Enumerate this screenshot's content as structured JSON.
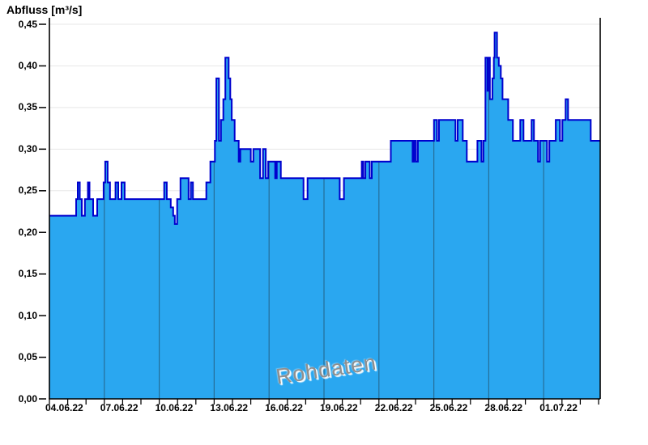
{
  "title": "Abfluss [m³/s]",
  "watermark": "Rohdaten",
  "chart_data": {
    "type": "area",
    "title": "Abfluss [m³/s]",
    "subtitle": "Rohdaten",
    "grid": true,
    "legend": false,
    "x_axis": {
      "start_label": "04.06.22",
      "end_of_range": "04.07.22",
      "span_days": 30,
      "minor_tick_interval_days": 1,
      "major_tick_interval_days": 3,
      "ticks": [
        {
          "day": 0,
          "label": "04.06.22"
        },
        {
          "day": 3,
          "label": "07.06.22"
        },
        {
          "day": 6,
          "label": "10.06.22"
        },
        {
          "day": 9,
          "label": "13.06.22"
        },
        {
          "day": 12,
          "label": "16.06.22"
        },
        {
          "day": 15,
          "label": "19.06.22"
        },
        {
          "day": 18,
          "label": "22.06.22"
        },
        {
          "day": 21,
          "label": "25.06.22"
        },
        {
          "day": 24,
          "label": "28.06.22"
        },
        {
          "day": 27,
          "label": "01.07.22"
        }
      ],
      "gridline_days": [
        3,
        6,
        9,
        12,
        15,
        18,
        21,
        24,
        27
      ]
    },
    "y_axis": {
      "label": "Abfluss [m³/s]",
      "min": 0,
      "max": 0.45,
      "tick_step": 0.05,
      "tick_values": [
        0,
        0.05,
        0.1,
        0.15,
        0.2,
        0.25,
        0.3,
        0.35,
        0.4,
        0.45
      ],
      "tick_labels": [
        "0,00",
        "0,05",
        "0,10",
        "0,15",
        "0,20",
        "0,25",
        "0,30",
        "0,35",
        "0,40",
        "0,45"
      ]
    },
    "series": [
      {
        "name": "Rohdaten",
        "unit": "m³/s",
        "step_mode": "step-after",
        "points_day_value": [
          [
            0.0,
            0.22
          ],
          [
            1.46,
            0.24
          ],
          [
            1.55,
            0.26
          ],
          [
            1.66,
            0.24
          ],
          [
            1.77,
            0.22
          ],
          [
            1.94,
            0.24
          ],
          [
            2.1,
            0.26
          ],
          [
            2.19,
            0.24
          ],
          [
            2.39,
            0.22
          ],
          [
            2.61,
            0.24
          ],
          [
            2.96,
            0.26
          ],
          [
            3.05,
            0.285
          ],
          [
            3.18,
            0.26
          ],
          [
            3.31,
            0.24
          ],
          [
            3.61,
            0.26
          ],
          [
            3.76,
            0.24
          ],
          [
            3.94,
            0.26
          ],
          [
            4.11,
            0.24
          ],
          [
            6.27,
            0.26
          ],
          [
            6.41,
            0.24
          ],
          [
            6.63,
            0.23
          ],
          [
            6.76,
            0.22
          ],
          [
            6.85,
            0.21
          ],
          [
            6.98,
            0.24
          ],
          [
            7.16,
            0.265
          ],
          [
            7.6,
            0.24
          ],
          [
            7.73,
            0.26
          ],
          [
            7.84,
            0.24
          ],
          [
            8.57,
            0.26
          ],
          [
            8.79,
            0.285
          ],
          [
            9.04,
            0.31
          ],
          [
            9.12,
            0.385
          ],
          [
            9.26,
            0.31
          ],
          [
            9.37,
            0.335
          ],
          [
            9.5,
            0.36
          ],
          [
            9.61,
            0.41
          ],
          [
            9.79,
            0.385
          ],
          [
            9.88,
            0.36
          ],
          [
            9.96,
            0.335
          ],
          [
            10.12,
            0.31
          ],
          [
            10.34,
            0.285
          ],
          [
            10.43,
            0.3
          ],
          [
            11.0,
            0.285
          ],
          [
            11.14,
            0.3
          ],
          [
            11.51,
            0.265
          ],
          [
            11.67,
            0.3
          ],
          [
            11.82,
            0.265
          ],
          [
            11.95,
            0.285
          ],
          [
            12.33,
            0.265
          ],
          [
            12.42,
            0.285
          ],
          [
            12.64,
            0.265
          ],
          [
            13.88,
            0.24
          ],
          [
            14.1,
            0.265
          ],
          [
            15.86,
            0.24
          ],
          [
            16.09,
            0.265
          ],
          [
            17.06,
            0.285
          ],
          [
            17.15,
            0.265
          ],
          [
            17.26,
            0.285
          ],
          [
            17.5,
            0.265
          ],
          [
            17.61,
            0.285
          ],
          [
            18.65,
            0.31
          ],
          [
            19.84,
            0.285
          ],
          [
            19.93,
            0.31
          ],
          [
            20.02,
            0.285
          ],
          [
            20.13,
            0.31
          ],
          [
            21.01,
            0.335
          ],
          [
            21.17,
            0.31
          ],
          [
            21.28,
            0.335
          ],
          [
            22.18,
            0.31
          ],
          [
            22.3,
            0.335
          ],
          [
            22.58,
            0.31
          ],
          [
            22.8,
            0.285
          ],
          [
            23.38,
            0.31
          ],
          [
            23.6,
            0.285
          ],
          [
            23.71,
            0.31
          ],
          [
            23.82,
            0.41
          ],
          [
            23.93,
            0.37
          ],
          [
            23.97,
            0.41
          ],
          [
            24.06,
            0.36
          ],
          [
            24.2,
            0.385
          ],
          [
            24.28,
            0.41
          ],
          [
            24.32,
            0.44
          ],
          [
            24.45,
            0.41
          ],
          [
            24.55,
            0.4
          ],
          [
            24.66,
            0.385
          ],
          [
            24.75,
            0.36
          ],
          [
            25.06,
            0.335
          ],
          [
            25.32,
            0.31
          ],
          [
            25.72,
            0.335
          ],
          [
            25.9,
            0.31
          ],
          [
            26.34,
            0.335
          ],
          [
            26.47,
            0.31
          ],
          [
            26.69,
            0.285
          ],
          [
            26.8,
            0.31
          ],
          [
            27.18,
            0.285
          ],
          [
            27.31,
            0.31
          ],
          [
            27.66,
            0.335
          ],
          [
            27.89,
            0.31
          ],
          [
            28.02,
            0.335
          ],
          [
            28.2,
            0.36
          ],
          [
            28.33,
            0.335
          ],
          [
            29.57,
            0.31
          ]
        ]
      }
    ],
    "colors": {
      "fill": "#2AA7F0",
      "line": "#0000CD",
      "grid_horizontal": "#e7e7e7",
      "grid_vertical_over_fill": "rgba(30,30,30,0.42)",
      "axis": "#000000",
      "watermark_text": "#8f8f8f"
    }
  }
}
